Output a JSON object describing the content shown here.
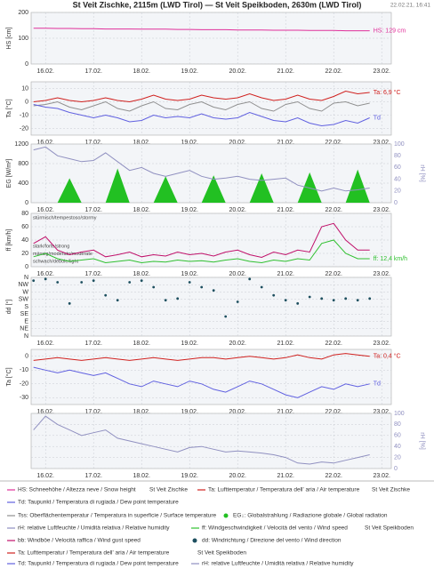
{
  "title": "St Veit Zischke, 2115m (LWD Tirol) — St Veit Speikboden, 2630m (LWD Tirol)",
  "timestamp": "22.02.21, 16:41",
  "stations": [
    "St Veit Zischke",
    "St Veit Speikboden"
  ],
  "chart_data": [
    {
      "type": "line",
      "ylabel": "HS [cm]",
      "xlim": [
        15.7,
        23.2
      ],
      "xticks": [
        {
          "value": 16,
          "label": "16.02."
        },
        {
          "value": 17,
          "label": "17.02."
        },
        {
          "value": 18,
          "label": "18.02."
        },
        {
          "value": 19,
          "label": "19.02."
        },
        {
          "value": 20,
          "label": "20.02."
        },
        {
          "value": 21,
          "label": "21.02."
        },
        {
          "value": 22,
          "label": "22.02."
        },
        {
          "value": 23,
          "label": "23.02."
        }
      ],
      "ylim": [
        0,
        200
      ],
      "yticks": [
        0,
        100,
        200
      ],
      "grid": true,
      "x": [
        15.75,
        16,
        16.25,
        16.5,
        16.75,
        17,
        17.25,
        17.5,
        17.75,
        18,
        18.25,
        18.5,
        18.75,
        19,
        19.25,
        19.5,
        19.75,
        20,
        20.25,
        20.5,
        20.75,
        21,
        21.25,
        21.5,
        21.75,
        22,
        22.25,
        22.5,
        22.75
      ],
      "series": [
        {
          "name": "HS: Schneehöhe / Altezza neve / Snow height",
          "color": "#e0309a",
          "end_label": "HS: 129 cm",
          "values": [
            139,
            139,
            138,
            138,
            137,
            137,
            136,
            136,
            136,
            135,
            135,
            135,
            134,
            134,
            133,
            133,
            133,
            132,
            132,
            132,
            131,
            131,
            131,
            130,
            130,
            130,
            129,
            129,
            129
          ]
        }
      ]
    },
    {
      "type": "line",
      "ylabel": "Ta [°C]",
      "xlim": [
        15.7,
        23.2
      ],
      "xticks": [
        {
          "value": 16,
          "label": "16.02."
        },
        {
          "value": 17,
          "label": "17.02."
        },
        {
          "value": 18,
          "label": "18.02."
        },
        {
          "value": 19,
          "label": "19.02."
        },
        {
          "value": 20,
          "label": "20.02."
        },
        {
          "value": 21,
          "label": "21.02."
        },
        {
          "value": 22,
          "label": "22.02."
        },
        {
          "value": 23,
          "label": "23.02."
        }
      ],
      "ylim": [
        -25,
        15
      ],
      "yticks": [
        -20,
        -10,
        0,
        10
      ],
      "grid": true,
      "x": [
        15.75,
        16,
        16.25,
        16.5,
        16.75,
        17,
        17.25,
        17.5,
        17.75,
        18,
        18.25,
        18.5,
        18.75,
        19,
        19.25,
        19.5,
        19.75,
        20,
        20.25,
        20.5,
        20.75,
        21,
        21.25,
        21.5,
        21.75,
        22,
        22.25,
        22.5,
        22.75
      ],
      "series": [
        {
          "name": "Tss: Oberflächentemperatur / Temperatura in superficie / Surface temperature",
          "color": "#909090",
          "values": [
            -3,
            -2,
            0,
            -4,
            -6,
            -3,
            0,
            -5,
            -7,
            -3,
            0,
            -5,
            -6,
            -2,
            0,
            -4,
            -6,
            -2,
            0,
            -5,
            -7,
            -2,
            0,
            -5,
            -7,
            -1,
            0,
            -3,
            -1
          ]
        },
        {
          "name": "Td: Taupunkt / Temperatura di rugiada / Dew point temperature",
          "color": "#6060e0",
          "end_label": "Td",
          "values": [
            -2,
            -4,
            -5,
            -8,
            -10,
            -12,
            -10,
            -12,
            -15,
            -14,
            -10,
            -12,
            -11,
            -12,
            -9,
            -12,
            -13,
            -12,
            -8,
            -11,
            -14,
            -15,
            -12,
            -16,
            -18,
            -17,
            -14,
            -16,
            -12
          ]
        },
        {
          "name": "Ta: Lufttemperatur / Temperatura dell' aria / Air temperature",
          "color": "#d0201e",
          "end_label": "Ta: 6,9 °C",
          "values": [
            0,
            1,
            3,
            1,
            0,
            1,
            3,
            1,
            0,
            2,
            5,
            2,
            1,
            2,
            5,
            3,
            2,
            3,
            6,
            3,
            1,
            2,
            5,
            2,
            1,
            4,
            8,
            6,
            7
          ]
        }
      ]
    },
    {
      "type": "line",
      "ylabel": "EG [W/m²]",
      "y2label": "rH [%]",
      "xlim": [
        15.7,
        23.2
      ],
      "xticks": [
        {
          "value": 16,
          "label": "16.02."
        },
        {
          "value": 17,
          "label": "17.02."
        },
        {
          "value": 18,
          "label": "18.02."
        },
        {
          "value": 19,
          "label": "19.02."
        },
        {
          "value": 20,
          "label": "20.02."
        },
        {
          "value": 21,
          "label": "21.02."
        },
        {
          "value": 22,
          "label": "22.02."
        },
        {
          "value": 23,
          "label": "23.02."
        }
      ],
      "ylim": [
        0,
        1200
      ],
      "yticks": [
        0,
        400,
        800,
        1200
      ],
      "y2lim": [
        0,
        100
      ],
      "y2ticks": [
        0,
        20,
        40,
        60,
        80,
        100
      ],
      "grid": true,
      "x": [
        15.75,
        16,
        16.25,
        16.5,
        16.75,
        17,
        17.25,
        17.5,
        17.75,
        18,
        18.25,
        18.5,
        18.75,
        19,
        19.25,
        19.5,
        19.75,
        20,
        20.25,
        20.5,
        20.75,
        21,
        21.25,
        21.5,
        21.75,
        22,
        22.25,
        22.5,
        22.75
      ],
      "series": [
        {
          "name": "EG↓: Globalstrahlung / Radiazione globale / Global radiation",
          "color": "#22c022",
          "type": "area",
          "values": [
            0,
            0,
            0,
            500,
            0,
            0,
            0,
            700,
            0,
            0,
            0,
            540,
            0,
            0,
            0,
            560,
            0,
            0,
            0,
            600,
            0,
            0,
            0,
            620,
            0,
            0,
            0,
            680,
            0
          ]
        },
        {
          "name": "rH: relative Luftfeuchte / Umidità relativa / Relative humidity",
          "color": "#9090c0",
          "axis": "y2",
          "values": [
            90,
            95,
            80,
            75,
            70,
            72,
            85,
            70,
            55,
            60,
            50,
            45,
            50,
            55,
            45,
            40,
            42,
            45,
            40,
            38,
            40,
            42,
            30,
            25,
            20,
            25,
            20,
            22,
            25
          ]
        }
      ]
    },
    {
      "type": "line",
      "ylabel": "ff [km/h]",
      "xlim": [
        15.7,
        23.2
      ],
      "xticks": [
        {
          "value": 16,
          "label": "16.02."
        },
        {
          "value": 17,
          "label": "17.02."
        },
        {
          "value": 18,
          "label": "18.02."
        },
        {
          "value": 19,
          "label": "19.02."
        },
        {
          "value": 20,
          "label": "20.02."
        },
        {
          "value": 21,
          "label": "21.02."
        },
        {
          "value": 22,
          "label": "22.02."
        },
        {
          "value": 23,
          "label": "23.02."
        }
      ],
      "ylim": [
        0,
        80
      ],
      "yticks": [
        0,
        20,
        40,
        60,
        80
      ],
      "grid": true,
      "annotations": [
        "stürmisch/tempestoso/stormy",
        "stark/forte/strong",
        "mässig/moderato/moderate",
        "schwach/debole/light"
      ],
      "x": [
        15.75,
        16,
        16.25,
        16.5,
        16.75,
        17,
        17.25,
        17.5,
        17.75,
        18,
        18.25,
        18.5,
        18.75,
        19,
        19.25,
        19.5,
        19.75,
        20,
        20.25,
        20.5,
        20.75,
        21,
        21.25,
        21.5,
        21.75,
        22,
        22.25,
        22.5,
        22.75
      ],
      "series": [
        {
          "name": "bb: Windböe / Velocità raffica / Wind gust speed",
          "color": "#c0106a",
          "values": [
            35,
            45,
            25,
            18,
            22,
            25,
            15,
            18,
            22,
            15,
            18,
            16,
            22,
            18,
            20,
            16,
            22,
            25,
            18,
            14,
            22,
            18,
            25,
            22,
            60,
            65,
            40,
            25,
            25
          ]
        },
        {
          "name": "ff: Windgeschwindigkeit / Velocità del vento / Wind speed",
          "color": "#30c030",
          "end_label": "ff: 12,4 km/h",
          "values": [
            15,
            20,
            12,
            8,
            10,
            12,
            6,
            8,
            10,
            6,
            8,
            7,
            10,
            8,
            9,
            7,
            10,
            12,
            8,
            6,
            10,
            8,
            12,
            10,
            35,
            40,
            20,
            12,
            12
          ]
        }
      ]
    },
    {
      "type": "scatter",
      "ylabel": "dd [°]",
      "xlim": [
        15.7,
        23.2
      ],
      "xticks": [
        {
          "value": 16,
          "label": "16.02."
        },
        {
          "value": 17,
          "label": "17.02."
        },
        {
          "value": 18,
          "label": "18.02."
        },
        {
          "value": 19,
          "label": "19.02."
        },
        {
          "value": 20,
          "label": "20.02."
        },
        {
          "value": 21,
          "label": "21.02."
        },
        {
          "value": 22,
          "label": "22.02."
        },
        {
          "value": 23,
          "label": "23.02."
        }
      ],
      "ylim": [
        0,
        360
      ],
      "yticks": [
        {
          "value": 0,
          "label": "N"
        },
        {
          "value": 45,
          "label": "NE"
        },
        {
          "value": 90,
          "label": "E"
        },
        {
          "value": 135,
          "label": "SE"
        },
        {
          "value": 180,
          "label": "S"
        },
        {
          "value": 225,
          "label": "SW"
        },
        {
          "value": 270,
          "label": "W"
        },
        {
          "value": 315,
          "label": "NW"
        },
        {
          "value": 360,
          "label": "N"
        }
      ],
      "grid": true,
      "x": [
        15.75,
        16,
        16.25,
        16.5,
        16.75,
        17,
        17.25,
        17.5,
        17.75,
        18,
        18.25,
        18.5,
        18.75,
        19,
        19.25,
        19.5,
        19.75,
        20,
        20.25,
        20.5,
        20.75,
        21,
        21.25,
        21.5,
        21.75,
        22,
        22.25,
        22.5,
        22.75
      ],
      "series": [
        {
          "name": "dd: Windrichtung / Direzione del vento / Wind direction",
          "color": "#1d4f5f",
          "values": [
            340,
            350,
            330,
            200,
            330,
            340,
            250,
            220,
            330,
            340,
            300,
            220,
            230,
            330,
            300,
            280,
            120,
            210,
            350,
            300,
            250,
            220,
            200,
            240,
            230,
            220,
            230,
            220,
            230
          ]
        }
      ]
    },
    {
      "type": "line",
      "ylabel": "Ta [°C]",
      "xlim": [
        15.7,
        23.2
      ],
      "xticks": [
        {
          "value": 16,
          "label": "16.02."
        },
        {
          "value": 17,
          "label": "17.02."
        },
        {
          "value": 18,
          "label": "18.02."
        },
        {
          "value": 19,
          "label": "19.02."
        },
        {
          "value": 20,
          "label": "20.02."
        },
        {
          "value": 21,
          "label": "21.02."
        },
        {
          "value": 22,
          "label": "22.02."
        },
        {
          "value": 23,
          "label": "23.02."
        }
      ],
      "ylim": [
        -35,
        5
      ],
      "yticks": [
        -30,
        -20,
        -10,
        0
      ],
      "grid": true,
      "x": [
        15.75,
        16,
        16.25,
        16.5,
        16.75,
        17,
        17.25,
        17.5,
        17.75,
        18,
        18.25,
        18.5,
        18.75,
        19,
        19.25,
        19.5,
        19.75,
        20,
        20.25,
        20.5,
        20.75,
        21,
        21.25,
        21.5,
        21.75,
        22,
        22.25,
        22.5,
        22.75
      ],
      "series": [
        {
          "name": "Td: Taupunkt / Temperatura di rugiada / Dew point temperature",
          "color": "#6060e0",
          "end_label": "Td",
          "values": [
            -8,
            -10,
            -12,
            -10,
            -12,
            -14,
            -12,
            -16,
            -20,
            -22,
            -18,
            -20,
            -22,
            -18,
            -20,
            -24,
            -26,
            -22,
            -18,
            -20,
            -24,
            -28,
            -30,
            -26,
            -22,
            -24,
            -20,
            -22,
            -20
          ]
        },
        {
          "name": "Ta: Lufttemperatur / Temperatura dell' aria / Air temperature",
          "color": "#d0201e",
          "end_label": "Ta: 0,4 °C",
          "values": [
            -3,
            -2,
            -1,
            -2,
            -3,
            -2,
            -1,
            -2,
            -3,
            -2,
            -1,
            -2,
            -3,
            -2,
            -1,
            -1,
            -2,
            -1,
            0,
            -1,
            -2,
            -1,
            1,
            -1,
            -2,
            1,
            2,
            1,
            0
          ]
        }
      ]
    },
    {
      "type": "line",
      "y2label": "rH [%]",
      "xlim": [
        15.7,
        23.2
      ],
      "xticks": [
        {
          "value": 16,
          "label": "16.02."
        },
        {
          "value": 17,
          "label": "17.02."
        },
        {
          "value": 18,
          "label": "18.02."
        },
        {
          "value": 19,
          "label": "19.02."
        },
        {
          "value": 20,
          "label": "20.02."
        },
        {
          "value": 21,
          "label": "21.02."
        },
        {
          "value": 22,
          "label": "22.02."
        },
        {
          "value": 23,
          "label": "23.02."
        }
      ],
      "y2lim": [
        0,
        100
      ],
      "y2ticks": [
        0,
        20,
        40,
        60,
        80,
        100
      ],
      "grid": true,
      "x": [
        15.75,
        16,
        16.25,
        16.5,
        16.75,
        17,
        17.25,
        17.5,
        17.75,
        18,
        18.25,
        18.5,
        18.75,
        19,
        19.25,
        19.5,
        19.75,
        20,
        20.25,
        20.5,
        20.75,
        21,
        21.25,
        21.5,
        21.75,
        22,
        22.25,
        22.5,
        22.75
      ],
      "series": [
        {
          "name": "rH: relative Luftfeuchte / Umidità relativa / Relative humidity",
          "color": "#9090c0",
          "axis": "y2",
          "values": [
            70,
            95,
            80,
            70,
            60,
            65,
            70,
            55,
            50,
            45,
            40,
            35,
            30,
            38,
            40,
            35,
            30,
            32,
            30,
            28,
            25,
            20,
            10,
            8,
            12,
            10,
            15,
            20,
            25
          ]
        }
      ]
    }
  ]
}
